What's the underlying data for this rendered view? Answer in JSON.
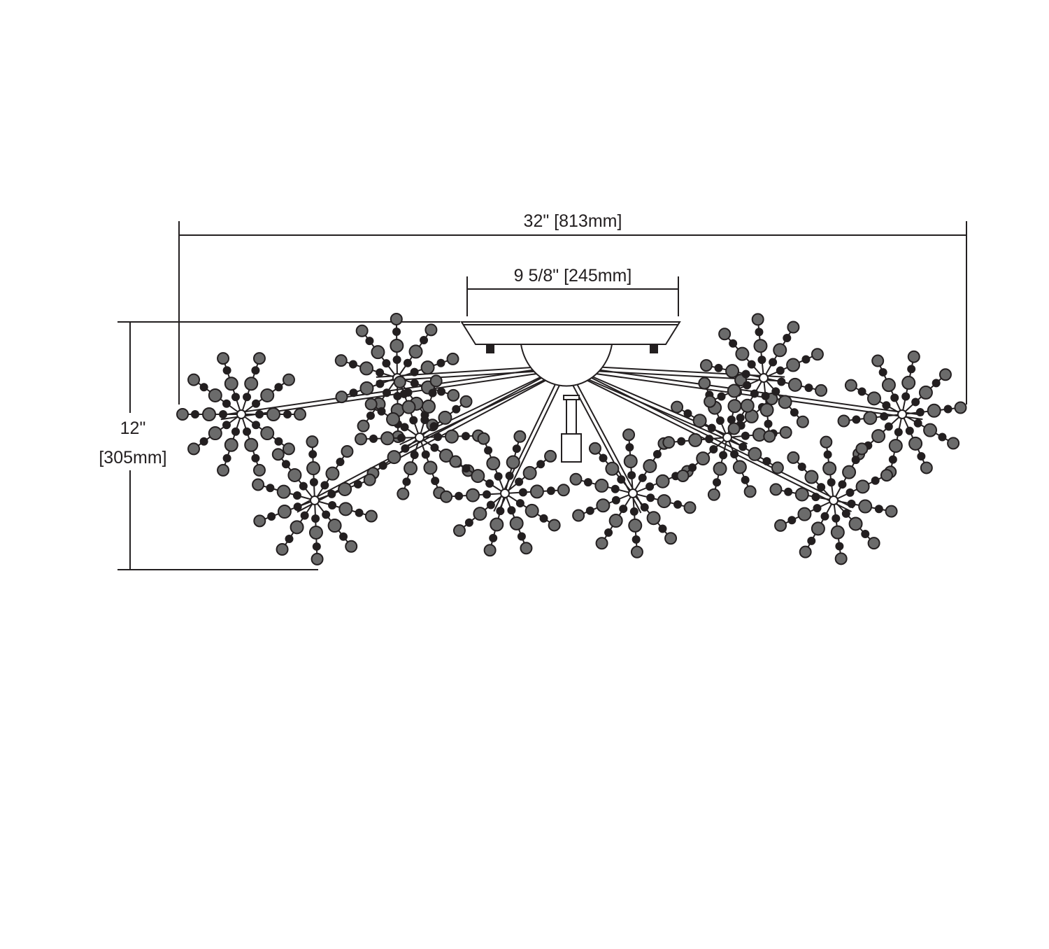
{
  "dimensions": {
    "overall_width": "32\" [813mm]",
    "canopy_width": "9 5/8\" [245mm]",
    "height_inches": "12\"",
    "height_mm": "[305mm]"
  },
  "colors": {
    "line": "#231f20",
    "background": "#ffffff"
  }
}
